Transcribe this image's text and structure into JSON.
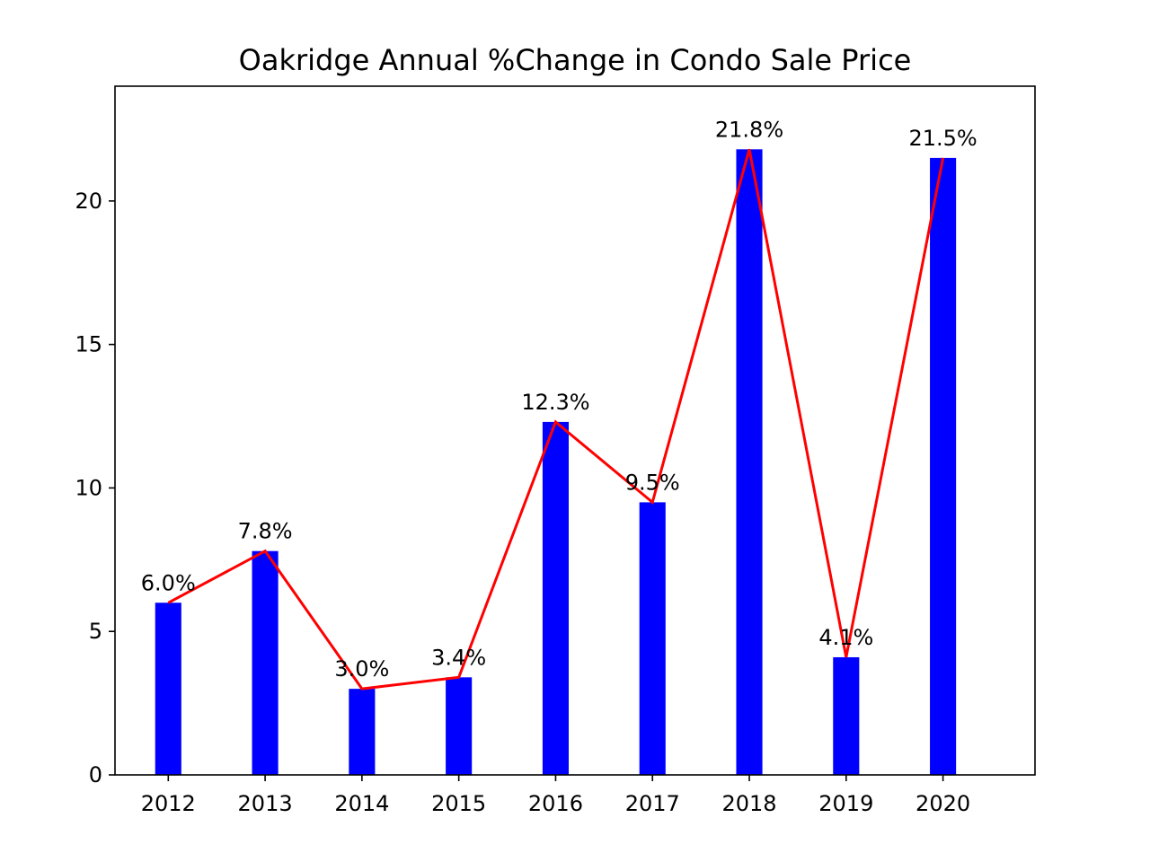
{
  "chart_data": {
    "type": "bar",
    "title": "Oakridge Annual %Change in Condo Sale Price",
    "xlabel": "",
    "ylabel": "",
    "categories": [
      "2012",
      "2013",
      "2014",
      "2015",
      "2016",
      "2017",
      "2018",
      "2019",
      "2020"
    ],
    "values": [
      6.0,
      7.8,
      3.0,
      3.4,
      12.3,
      9.5,
      21.8,
      4.1,
      21.5
    ],
    "data_labels": [
      "6.0%",
      "7.8%",
      "3.0%",
      "3.4%",
      "12.3%",
      "9.5%",
      "21.8%",
      "4.1%",
      "21.5%"
    ],
    "overlay_line": {
      "type": "line",
      "color": "#ff0000",
      "values": [
        6.0,
        7.8,
        3.0,
        3.4,
        12.3,
        9.5,
        21.8,
        4.1,
        21.5
      ]
    },
    "bar_color": "#0000ff",
    "ylim": [
      0,
      24
    ],
    "yticks": [
      0,
      5,
      10,
      15,
      20
    ],
    "grid": false,
    "legend": false
  }
}
